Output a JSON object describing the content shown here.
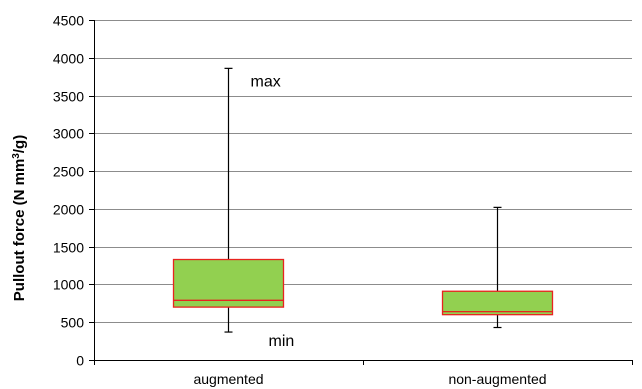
{
  "chart_data": {
    "type": "box",
    "ylabel_prefix": "Pullout force (N mm",
    "ylabel_superscript": "3",
    "ylabel_suffix": "/g)",
    "ylim": [
      0,
      4500
    ],
    "yticks": [
      0,
      500,
      1000,
      1500,
      2000,
      2500,
      3000,
      3500,
      4000,
      4500
    ],
    "grid": true,
    "categories": [
      "augmented",
      "non-augmented"
    ],
    "boxes": [
      {
        "category": "augmented",
        "min": 370,
        "q1": 700,
        "median": 790,
        "q3": 1330,
        "max": 3860
      },
      {
        "category": "non-augmented",
        "min": 430,
        "q1": 600,
        "median": 640,
        "q3": 910,
        "max": 2020
      }
    ],
    "annotations": {
      "max_label": "max",
      "min_label": "min"
    },
    "colors": {
      "box_fill": "#92d050",
      "box_edge": "#e8231f",
      "median": "#e8231f",
      "grid": "#8c8c8c",
      "whisker": "#000000"
    }
  }
}
